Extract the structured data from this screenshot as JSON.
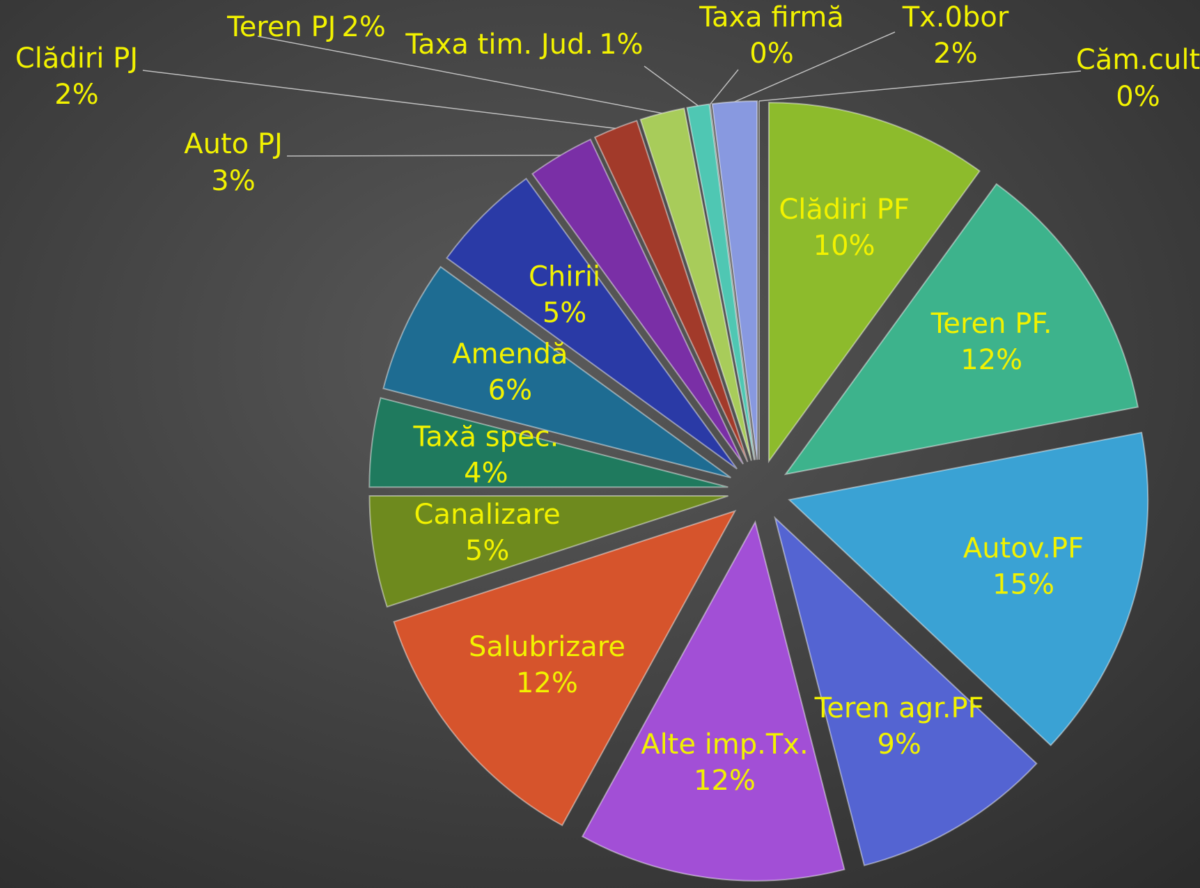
{
  "chart_data": {
    "type": "pie",
    "categories": [
      "Clădiri PF",
      "Teren PF.",
      "Autov.PF",
      "Teren agr.PF",
      "Alte imp.Tx.",
      "Salubrizare",
      "Canalizare",
      "Taxă spec.",
      "Amendă",
      "Chirii",
      "Auto PJ",
      "Clădiri PJ",
      "Teren PJ",
      "Taxa tim. Jud.",
      "Taxa firmă",
      "Tx.0bor",
      "Căm.cult"
    ],
    "values": [
      10,
      12,
      15,
      9,
      12,
      12,
      5,
      4,
      6,
      5,
      3,
      2,
      2,
      1,
      0,
      2,
      0
    ],
    "value_labels": [
      "10%",
      "12%",
      "15%",
      "9%",
      "12%",
      "12%",
      "5%",
      "4%",
      "6%",
      "5%",
      "3%",
      "2%",
      "2%",
      "1%",
      "0%",
      "2%",
      "0%"
    ],
    "colors": [
      "#8dbb2c",
      "#3db38c",
      "#3aa2d4",
      "#5464d2",
      "#a24fd6",
      "#d6542c",
      "#6e8a1e",
      "#1f7a5e",
      "#1e6c92",
      "#2a3aa6",
      "#7a2fa6",
      "#a23a2a",
      "#a8cc5a",
      "#4fc7b3",
      "#9aa0a6",
      "#8899e0",
      "#c06060"
    ]
  }
}
